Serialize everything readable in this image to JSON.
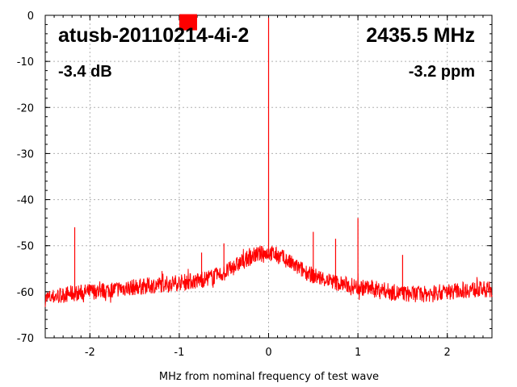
{
  "chart_data": {
    "type": "line",
    "xlabel": "MHz from nominal frequency of test wave",
    "ylabel": "",
    "xlim": [
      -2.5,
      2.5
    ],
    "ylim": [
      -70,
      0
    ],
    "x_ticks": [
      -2,
      -1,
      0,
      1,
      2
    ],
    "y_ticks": [
      0,
      -10,
      -20,
      -30,
      -40,
      -50,
      -60,
      -70
    ],
    "x_tick_labels": [
      "-2",
      "-1",
      "0",
      "1",
      "2"
    ],
    "y_tick_labels": [
      "0",
      "-10",
      "-20",
      "-30",
      "-40",
      "-50",
      "-60",
      "-70"
    ],
    "grid": true,
    "series_color": "#ff0000",
    "annotations": {
      "device": "atusb-20110214-4i-2",
      "frequency": "2435.5 MHz",
      "power": "-3.4 dB",
      "offset": "-3.2 ppm"
    },
    "marker": {
      "x": -0.9,
      "y": -1.5,
      "color": "#ff0000"
    },
    "series": [
      {
        "x": [
          -2.5,
          -2.25,
          -2.0,
          -1.75,
          -1.5,
          -1.25,
          -1.0,
          -0.75,
          -0.5,
          -0.3,
          -0.15,
          0.0,
          0.15,
          0.3,
          0.5,
          0.75,
          1.0,
          1.25,
          1.5,
          1.75,
          2.0,
          2.25,
          2.5
        ],
        "values": [
          -61.5,
          -60.5,
          -60,
          -59.5,
          -59,
          -58.5,
          -58,
          -57.5,
          -56,
          -53.5,
          -52,
          -51.5,
          -52.5,
          -54.5,
          -56.5,
          -58,
          -59,
          -59.5,
          -60.5,
          -60.5,
          -60,
          -59.5,
          -59.5
        ],
        "spikes": [
          {
            "x": -2.17,
            "y": -46
          },
          {
            "x": -0.75,
            "y": -51.5
          },
          {
            "x": -0.5,
            "y": -49.5
          },
          {
            "x": 0.0,
            "y": -0.5
          },
          {
            "x": 0.5,
            "y": -47
          },
          {
            "x": 0.75,
            "y": -48.5
          },
          {
            "x": 1.0,
            "y": -44
          },
          {
            "x": 1.5,
            "y": -52
          }
        ]
      }
    ]
  }
}
